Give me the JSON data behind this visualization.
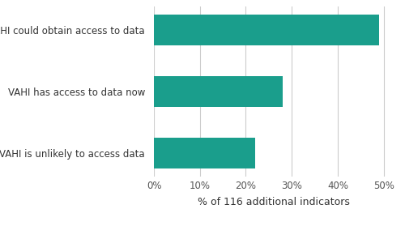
{
  "categories": [
    "VAHI is unlikely to access data",
    "VAHI has access to data now",
    "VAHI could obtain access to data"
  ],
  "values": [
    22,
    28,
    49
  ],
  "bar_color": "#1a9e8c",
  "xlabel": "% of 116 additional indicators",
  "xlim": [
    0,
    52
  ],
  "xticks": [
    0,
    10,
    20,
    30,
    40,
    50
  ],
  "xtick_labels": [
    "0%",
    "10%",
    "20%",
    "30%",
    "40%",
    "50%"
  ],
  "background_color": "#ffffff",
  "grid_color": "#cccccc",
  "label_fontsize": 8.5,
  "xlabel_fontsize": 9,
  "tick_fontsize": 8.5,
  "bar_height": 0.5
}
